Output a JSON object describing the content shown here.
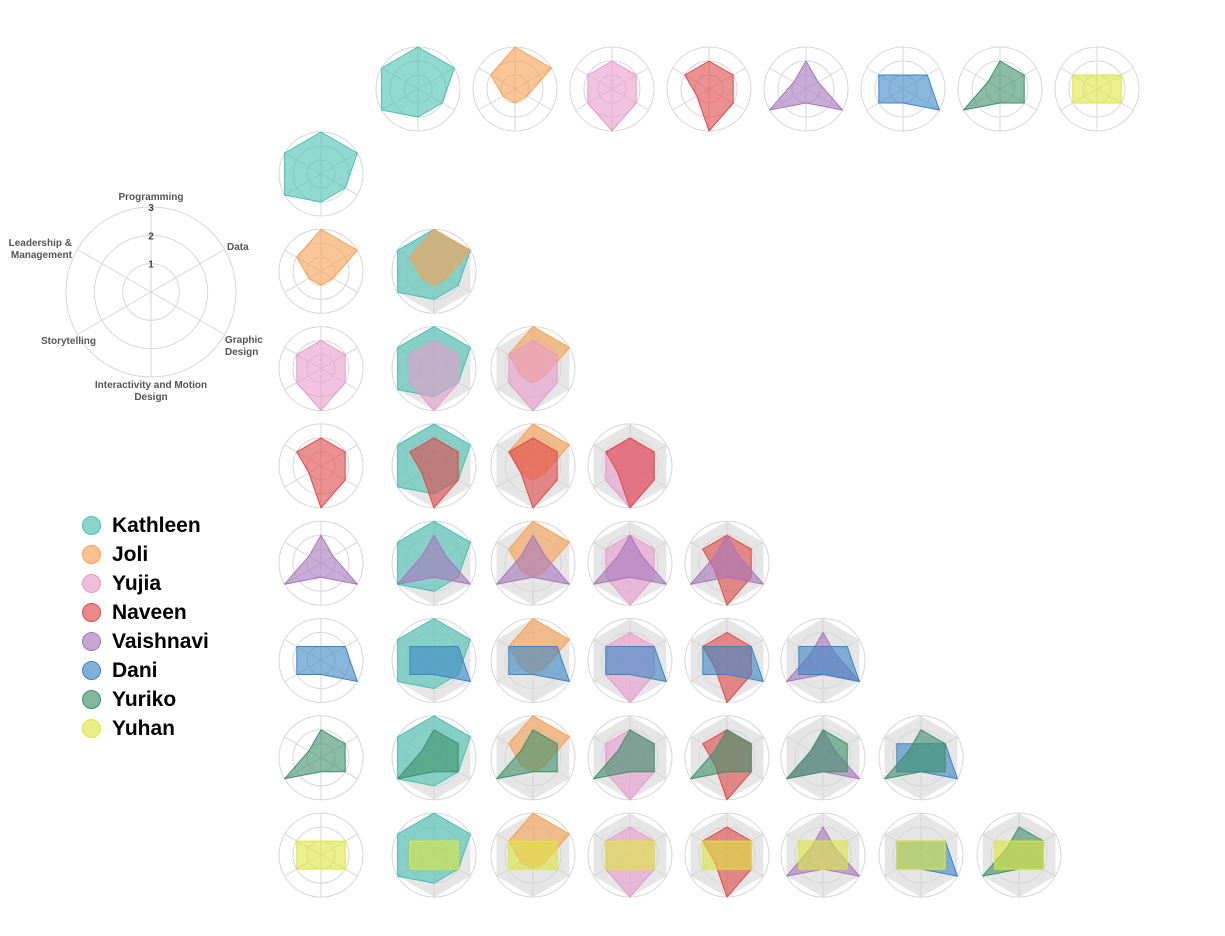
{
  "chart_data": {
    "type": "radar",
    "axes": [
      "Programming",
      "Data",
      "Graphic Design",
      "Interactivity and Motion Design",
      "Storytelling",
      "Leadership & Management"
    ],
    "axis_label_lines": [
      [
        "Programming"
      ],
      [
        "Data"
      ],
      [
        "Graphic",
        "Design"
      ],
      [
        "Interactivity and Motion",
        "Design"
      ],
      [
        "Storytelling"
      ],
      [
        "Leadership &",
        "Management"
      ]
    ],
    "ticks": [
      "1",
      "2",
      "3"
    ],
    "rmax": 3,
    "series": [
      {
        "name": "Kathleen",
        "color": "#47bfb2",
        "values": [
          3,
          3,
          2,
          2,
          3,
          3
        ]
      },
      {
        "name": "Joli",
        "color": "#f9a051",
        "values": [
          3,
          3,
          1,
          1,
          1,
          2
        ]
      },
      {
        "name": "Yujia",
        "color": "#e79bcb",
        "values": [
          2,
          2,
          2,
          3,
          2,
          2
        ]
      },
      {
        "name": "Naveen",
        "color": "#e04848",
        "values": [
          2,
          2,
          2,
          3,
          1,
          2
        ]
      },
      {
        "name": "Vaishnavi",
        "color": "#a676bd",
        "values": [
          2,
          1,
          3,
          1,
          3,
          1
        ]
      },
      {
        "name": "Dani",
        "color": "#3a86c5",
        "values": [
          1,
          2,
          3,
          1,
          2,
          2
        ]
      },
      {
        "name": "Yuriko",
        "color": "#3e9069",
        "values": [
          2,
          2,
          2,
          1,
          3,
          1
        ]
      },
      {
        "name": "Yuhan",
        "color": "#dde641",
        "values": [
          1,
          2,
          2,
          1,
          2,
          2
        ]
      }
    ],
    "layout": "matrix: top row and left column show individual profiles; lower triangle cells overlay pairs",
    "legend_position": "left"
  }
}
